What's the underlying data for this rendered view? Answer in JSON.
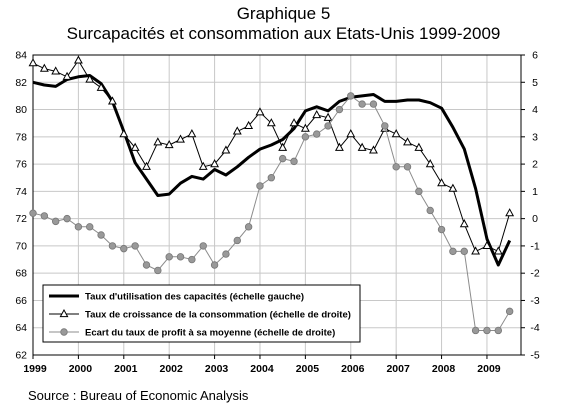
{
  "chart_data": {
    "type": "line",
    "title": "Graphique 5",
    "subtitle": "Surcapacités et consommation aux Etats-Unis 1999-2009",
    "source": "Source : Bureau of Economic Analysis",
    "x_labels": [
      "1999",
      "2000",
      "2001",
      "2002",
      "2003",
      "2004",
      "2005",
      "2006",
      "2007",
      "2008",
      "2009"
    ],
    "y_left": {
      "min": 62,
      "max": 84,
      "step": 2
    },
    "y_right": {
      "min": -5,
      "max": 6,
      "step": 1
    },
    "grid": true,
    "legend_position": "bottom-left",
    "series": [
      {
        "name": "Taux d'utilisation des capacités (échelle gauche)",
        "axis": "left",
        "style": "thick-line",
        "color": "#000000",
        "x": [
          1999.0,
          1999.25,
          1999.5,
          1999.75,
          2000.0,
          2000.25,
          2000.5,
          2000.75,
          2001.0,
          2001.25,
          2001.5,
          2001.75,
          2002.0,
          2002.25,
          2002.5,
          2002.75,
          2003.0,
          2003.25,
          2003.5,
          2003.75,
          2004.0,
          2004.25,
          2004.5,
          2004.75,
          2005.0,
          2005.25,
          2005.5,
          2005.75,
          2006.0,
          2006.25,
          2006.5,
          2006.75,
          2007.0,
          2007.25,
          2007.5,
          2007.75,
          2008.0,
          2008.25,
          2008.5,
          2008.75,
          2009.0,
          2009.25,
          2009.5
        ],
        "y": [
          82.0,
          81.8,
          81.7,
          82.2,
          82.4,
          82.5,
          81.9,
          80.6,
          78.4,
          76.1,
          74.9,
          73.7,
          73.8,
          74.6,
          75.1,
          74.9,
          75.6,
          75.2,
          75.8,
          76.5,
          77.1,
          77.4,
          77.8,
          78.6,
          79.9,
          80.2,
          79.9,
          80.6,
          80.9,
          81.0,
          81.1,
          80.6,
          80.6,
          80.7,
          80.7,
          80.5,
          80.1,
          78.7,
          77.1,
          74.2,
          70.5,
          68.6,
          70.4
        ]
      },
      {
        "name": "Taux de croissance de la consommation (échelle de droite)",
        "axis": "right",
        "style": "thin-line-triangles",
        "color": "#000000",
        "x": [
          1999.0,
          1999.25,
          1999.5,
          1999.75,
          2000.0,
          2000.25,
          2000.5,
          2000.75,
          2001.0,
          2001.25,
          2001.5,
          2001.75,
          2002.0,
          2002.25,
          2002.5,
          2002.75,
          2003.0,
          2003.25,
          2003.5,
          2003.75,
          2004.0,
          2004.25,
          2004.5,
          2004.75,
          2005.0,
          2005.25,
          2005.5,
          2005.75,
          2006.0,
          2006.25,
          2006.5,
          2006.75,
          2007.0,
          2007.25,
          2007.5,
          2007.75,
          2008.0,
          2008.25,
          2008.5,
          2008.75,
          2009.0,
          2009.25,
          2009.5
        ],
        "y": [
          5.7,
          5.5,
          5.4,
          5.2,
          5.8,
          5.1,
          4.8,
          4.3,
          3.1,
          2.6,
          1.9,
          2.8,
          2.7,
          2.9,
          3.1,
          1.9,
          2.0,
          2.5,
          3.2,
          3.4,
          3.9,
          3.5,
          2.6,
          3.5,
          3.3,
          3.8,
          3.7,
          2.6,
          3.1,
          2.6,
          2.5,
          3.3,
          3.1,
          2.8,
          2.6,
          2.0,
          1.3,
          1.1,
          -0.2,
          -1.2,
          -1.0,
          -1.2,
          0.2
        ]
      },
      {
        "name": "Ecart du taux de profit à sa moyenne (échelle de droite)",
        "axis": "right",
        "style": "thin-line-circles",
        "color": "#8c8c8c",
        "x": [
          1999.0,
          1999.25,
          1999.5,
          1999.75,
          2000.0,
          2000.25,
          2000.5,
          2000.75,
          2001.0,
          2001.25,
          2001.5,
          2001.75,
          2002.0,
          2002.25,
          2002.5,
          2002.75,
          2003.0,
          2003.25,
          2003.5,
          2003.75,
          2004.0,
          2004.25,
          2004.5,
          2004.75,
          2005.0,
          2005.25,
          2005.5,
          2005.75,
          2006.0,
          2006.25,
          2006.5,
          2006.75,
          2007.0,
          2007.25,
          2007.5,
          2007.75,
          2008.0,
          2008.25,
          2008.5,
          2008.75,
          2009.0,
          2009.25,
          2009.5
        ],
        "y": [
          0.2,
          0.1,
          -0.1,
          0.0,
          -0.3,
          -0.3,
          -0.6,
          -1.0,
          -1.1,
          -1.0,
          -1.7,
          -1.9,
          -1.4,
          -1.4,
          -1.5,
          -1.0,
          -1.7,
          -1.3,
          -0.8,
          -0.3,
          1.2,
          1.5,
          2.2,
          2.1,
          3.0,
          3.1,
          3.4,
          4.0,
          4.5,
          4.2,
          4.2,
          3.4,
          1.9,
          1.9,
          1.0,
          0.3,
          -0.4,
          -1.2,
          -1.2,
          -4.1,
          -4.1,
          -4.1,
          -3.4
        ]
      }
    ]
  }
}
